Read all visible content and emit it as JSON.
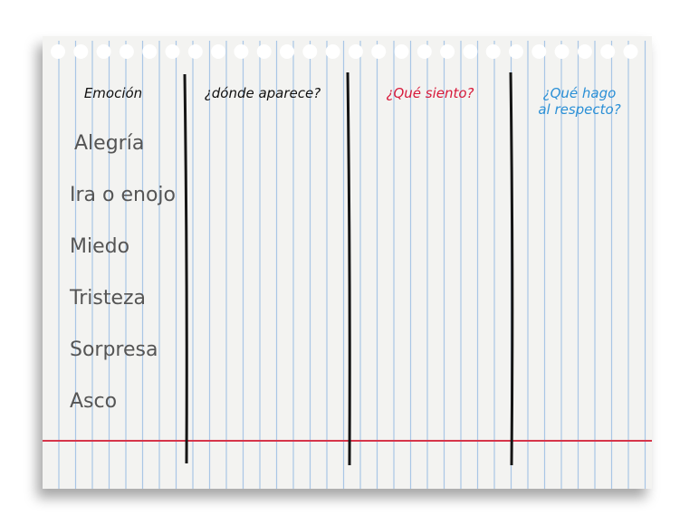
{
  "table": {
    "headers": [
      {
        "lines": [
          "Emoción"
        ],
        "color": "#111111"
      },
      {
        "lines": [
          "¿dónde aparece?"
        ],
        "color": "#111111"
      },
      {
        "lines": [
          "¿Qué siento?"
        ],
        "color": "#d7193a"
      },
      {
        "lines": [
          "¿Qué hago",
          "al respecto?"
        ],
        "color": "#2a8fd6"
      }
    ],
    "rows": [
      "Alegría",
      "Ira o enojo",
      "Miedo",
      "Tristeza",
      "Sorpresa",
      "Asco"
    ]
  }
}
